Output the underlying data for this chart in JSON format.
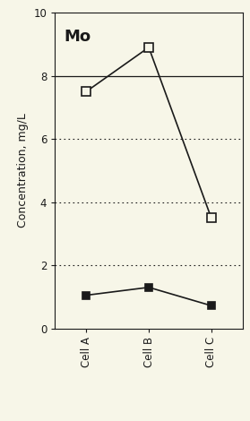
{
  "title": "Mo",
  "ylabel": "Concentration, mg/L",
  "categories": [
    "Cell A",
    "Cell B",
    "Cell C"
  ],
  "series_open": [
    7.5,
    8.9,
    3.5
  ],
  "series_filled": [
    1.05,
    1.3,
    0.72
  ],
  "hline_solid": 8.0,
  "hlines_dotted": [
    2.0,
    4.0,
    6.0
  ],
  "ylim": [
    0,
    10
  ],
  "background_color": "#f7f6e8",
  "line_color": "#1a1a1a",
  "title_fontsize": 13,
  "ylabel_fontsize": 9,
  "tick_fontsize": 8.5
}
